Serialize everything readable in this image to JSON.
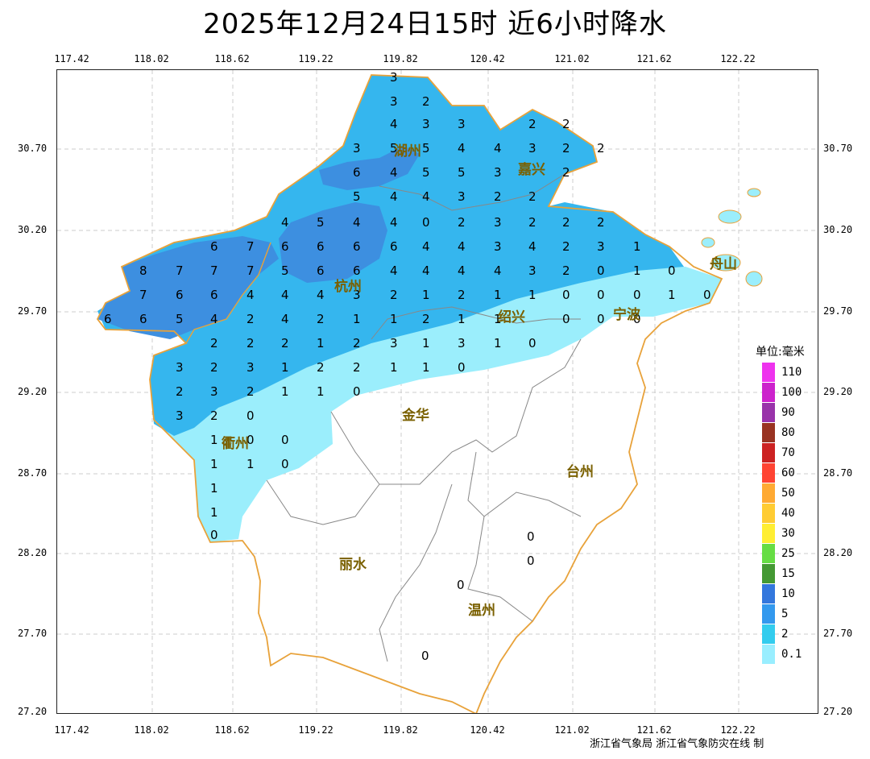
{
  "title": "2025年12月24日15时  近6小时降水",
  "x_ticks": [
    "117.42",
    "118.02",
    "118.62",
    "119.22",
    "119.82",
    "120.42",
    "121.02",
    "121.62",
    "122.22"
  ],
  "y_ticks": [
    "30.70",
    "30.20",
    "29.70",
    "29.20",
    "28.70",
    "28.20",
    "27.70",
    "27.20"
  ],
  "legend": {
    "title": "单位:毫米",
    "items": [
      {
        "label": "110",
        "color": "#ee33ee"
      },
      {
        "label": "100",
        "color": "#cc22cc"
      },
      {
        "label": "90",
        "color": "#9933aa"
      },
      {
        "label": "80",
        "color": "#993322"
      },
      {
        "label": "70",
        "color": "#cc2222"
      },
      {
        "label": "60",
        "color": "#ff4433"
      },
      {
        "label": "50",
        "color": "#ffaa33"
      },
      {
        "label": "40",
        "color": "#ffcc33"
      },
      {
        "label": "30",
        "color": "#ffee33"
      },
      {
        "label": "25",
        "color": "#66dd44"
      },
      {
        "label": "15",
        "color": "#449933"
      },
      {
        "label": "10",
        "color": "#3377dd"
      },
      {
        "label": "5",
        "color": "#3399ee"
      },
      {
        "label": "2",
        "color": "#33ccee"
      },
      {
        "label": "0.1",
        "color": "#99eeff"
      }
    ]
  },
  "cities": [
    "湖州",
    "嘉兴",
    "杭州",
    "绍兴",
    "宁波",
    "衢州",
    "金华",
    "台州",
    "丽水",
    "温州",
    "舟山"
  ],
  "footer": "浙江省气象局  浙江省气象防灾在线 制",
  "colors": {
    "band_5_10": "#3d8fe0",
    "band_2_5": "#35b6ee",
    "band_0_2": "#9beefc",
    "border": "#e8a23a",
    "county": "#888888"
  }
}
